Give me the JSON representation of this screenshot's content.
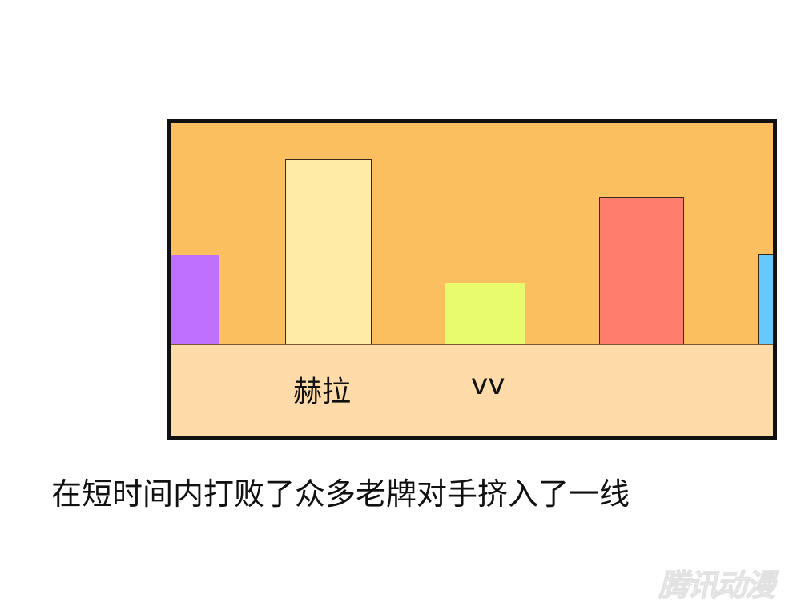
{
  "panel": {
    "bars": [
      {
        "name": "purple-block",
        "color": "#c070ff"
      },
      {
        "name": "cream-block",
        "color": "#ffeaa6"
      },
      {
        "name": "lime-block",
        "color": "#e8fb6c"
      },
      {
        "name": "red-block",
        "color": "#ff7d6c"
      },
      {
        "name": "blue-block",
        "color": "#66c8fb"
      }
    ],
    "labels": [
      "赫拉",
      "vv"
    ],
    "background_color": "#fcbf60",
    "ground_color": "#fedba8"
  },
  "caption": "在短时间内打败了众多老牌对手挤入了一线",
  "watermark": "腾讯动漫"
}
